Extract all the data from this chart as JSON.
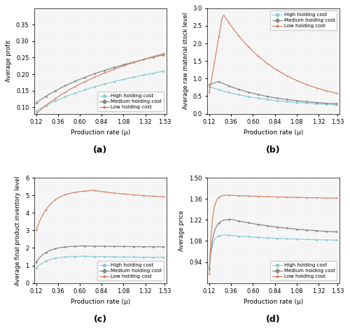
{
  "x_min": 0.12,
  "x_max": 1.53,
  "x_ticks": [
    0.12,
    0.36,
    0.6,
    0.84,
    1.08,
    1.32,
    1.53
  ],
  "xlabel": "Production rate (μ)",
  "col_high": "#8ecfcf",
  "col_med": "#888888",
  "col_low": "#d4846a",
  "legend_labels": [
    "High holding cost",
    "Medium holding cost",
    "Low holding cost"
  ],
  "subplot_labels": [
    "(a)",
    "(b)",
    "(c)",
    "(d)"
  ],
  "ylabel_a": "Average profit",
  "ylim_a": [
    0.08,
    0.4
  ],
  "yticks_a": [
    0.1,
    0.15,
    0.2,
    0.25,
    0.3,
    0.35
  ],
  "ylabel_b": "Average raw material stock level",
  "ylim_b": [
    0,
    3.0
  ],
  "yticks_b": [
    0,
    0.5,
    1.0,
    1.5,
    2.0,
    2.5,
    3.0
  ],
  "ylabel_c": "Average final product inventory level",
  "ylim_c": [
    0,
    6
  ],
  "yticks_c": [
    0,
    1,
    2,
    3,
    4,
    5,
    6
  ],
  "ylabel_d": "Average price",
  "ylim_d": [
    0.8,
    1.5
  ],
  "yticks_d": [
    0.94,
    1.08,
    1.22,
    1.36,
    1.5
  ]
}
